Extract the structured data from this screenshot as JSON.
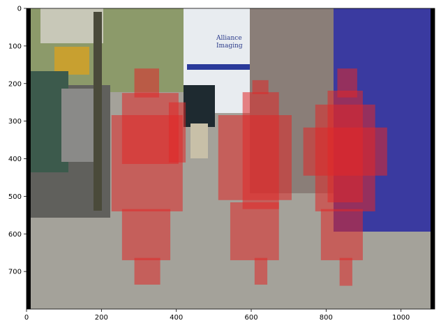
{
  "chart_data": {
    "type": "image",
    "xlim": [
      0,
      1090
    ],
    "ylim": [
      800,
      0
    ],
    "xticks": [
      0,
      200,
      400,
      600,
      800,
      1000
    ],
    "yticks": [
      0,
      100,
      200,
      300,
      400,
      500,
      600,
      700
    ],
    "scene_text": [
      "Alliance",
      "Imaging"
    ],
    "box_color": "#e02828",
    "boxes": [
      [
        288,
        160,
        66,
        77
      ],
      [
        255,
        225,
        151,
        189
      ],
      [
        227,
        284,
        190,
        256
      ],
      [
        380,
        250,
        45,
        160
      ],
      [
        255,
        534,
        129,
        136
      ],
      [
        288,
        664,
        69,
        71
      ],
      [
        603,
        191,
        43,
        37
      ],
      [
        577,
        223,
        97,
        311
      ],
      [
        512,
        284,
        196,
        226
      ],
      [
        544,
        516,
        130,
        154
      ],
      [
        609,
        664,
        34,
        71
      ],
      [
        830,
        160,
        53,
        77
      ],
      [
        804,
        219,
        94,
        297
      ],
      [
        739,
        317,
        224,
        128
      ],
      [
        771,
        256,
        160,
        284
      ],
      [
        786,
        534,
        112,
        136
      ],
      [
        836,
        664,
        34,
        74
      ]
    ]
  }
}
